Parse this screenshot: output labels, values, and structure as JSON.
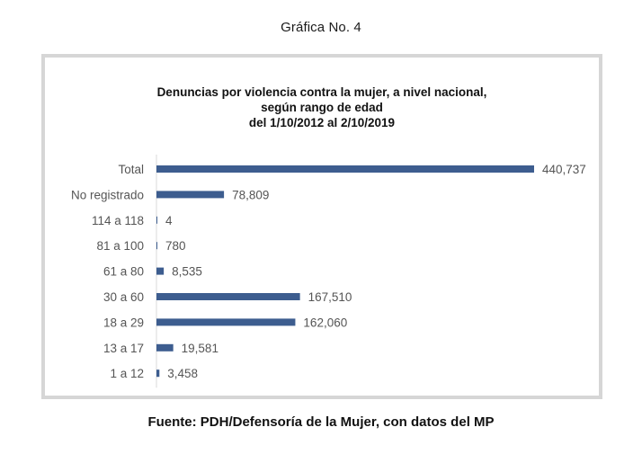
{
  "heading": "Gráfica No. 4",
  "source": "Fuente: PDH/Defensoría de la Mujer, con datos del MP",
  "chart_data": {
    "type": "bar",
    "orientation": "horizontal",
    "title_lines": [
      "Denuncias por violencia contra la mujer, a nivel nacional,",
      "según rango de edad",
      "del 1/10/2012 al 2/10/2019"
    ],
    "xlabel": "",
    "ylabel": "",
    "grid": false,
    "legend": "none",
    "bar_color": "#3d5d8f",
    "xlim": [
      0,
      440737
    ],
    "categories": [
      "Total",
      "No registrado",
      "114 a 118",
      "81 a 100",
      "61 a 80",
      "30 a 60",
      "18 a 29",
      "13 a 17",
      "1 a 12"
    ],
    "values": [
      440737,
      78809,
      4,
      780,
      8535,
      167510,
      162060,
      19581,
      3458
    ],
    "value_labels": [
      "440,737",
      "78,809",
      "4",
      "780",
      "8,535",
      "167,510",
      "162,060",
      "19,581",
      "3,458"
    ]
  }
}
